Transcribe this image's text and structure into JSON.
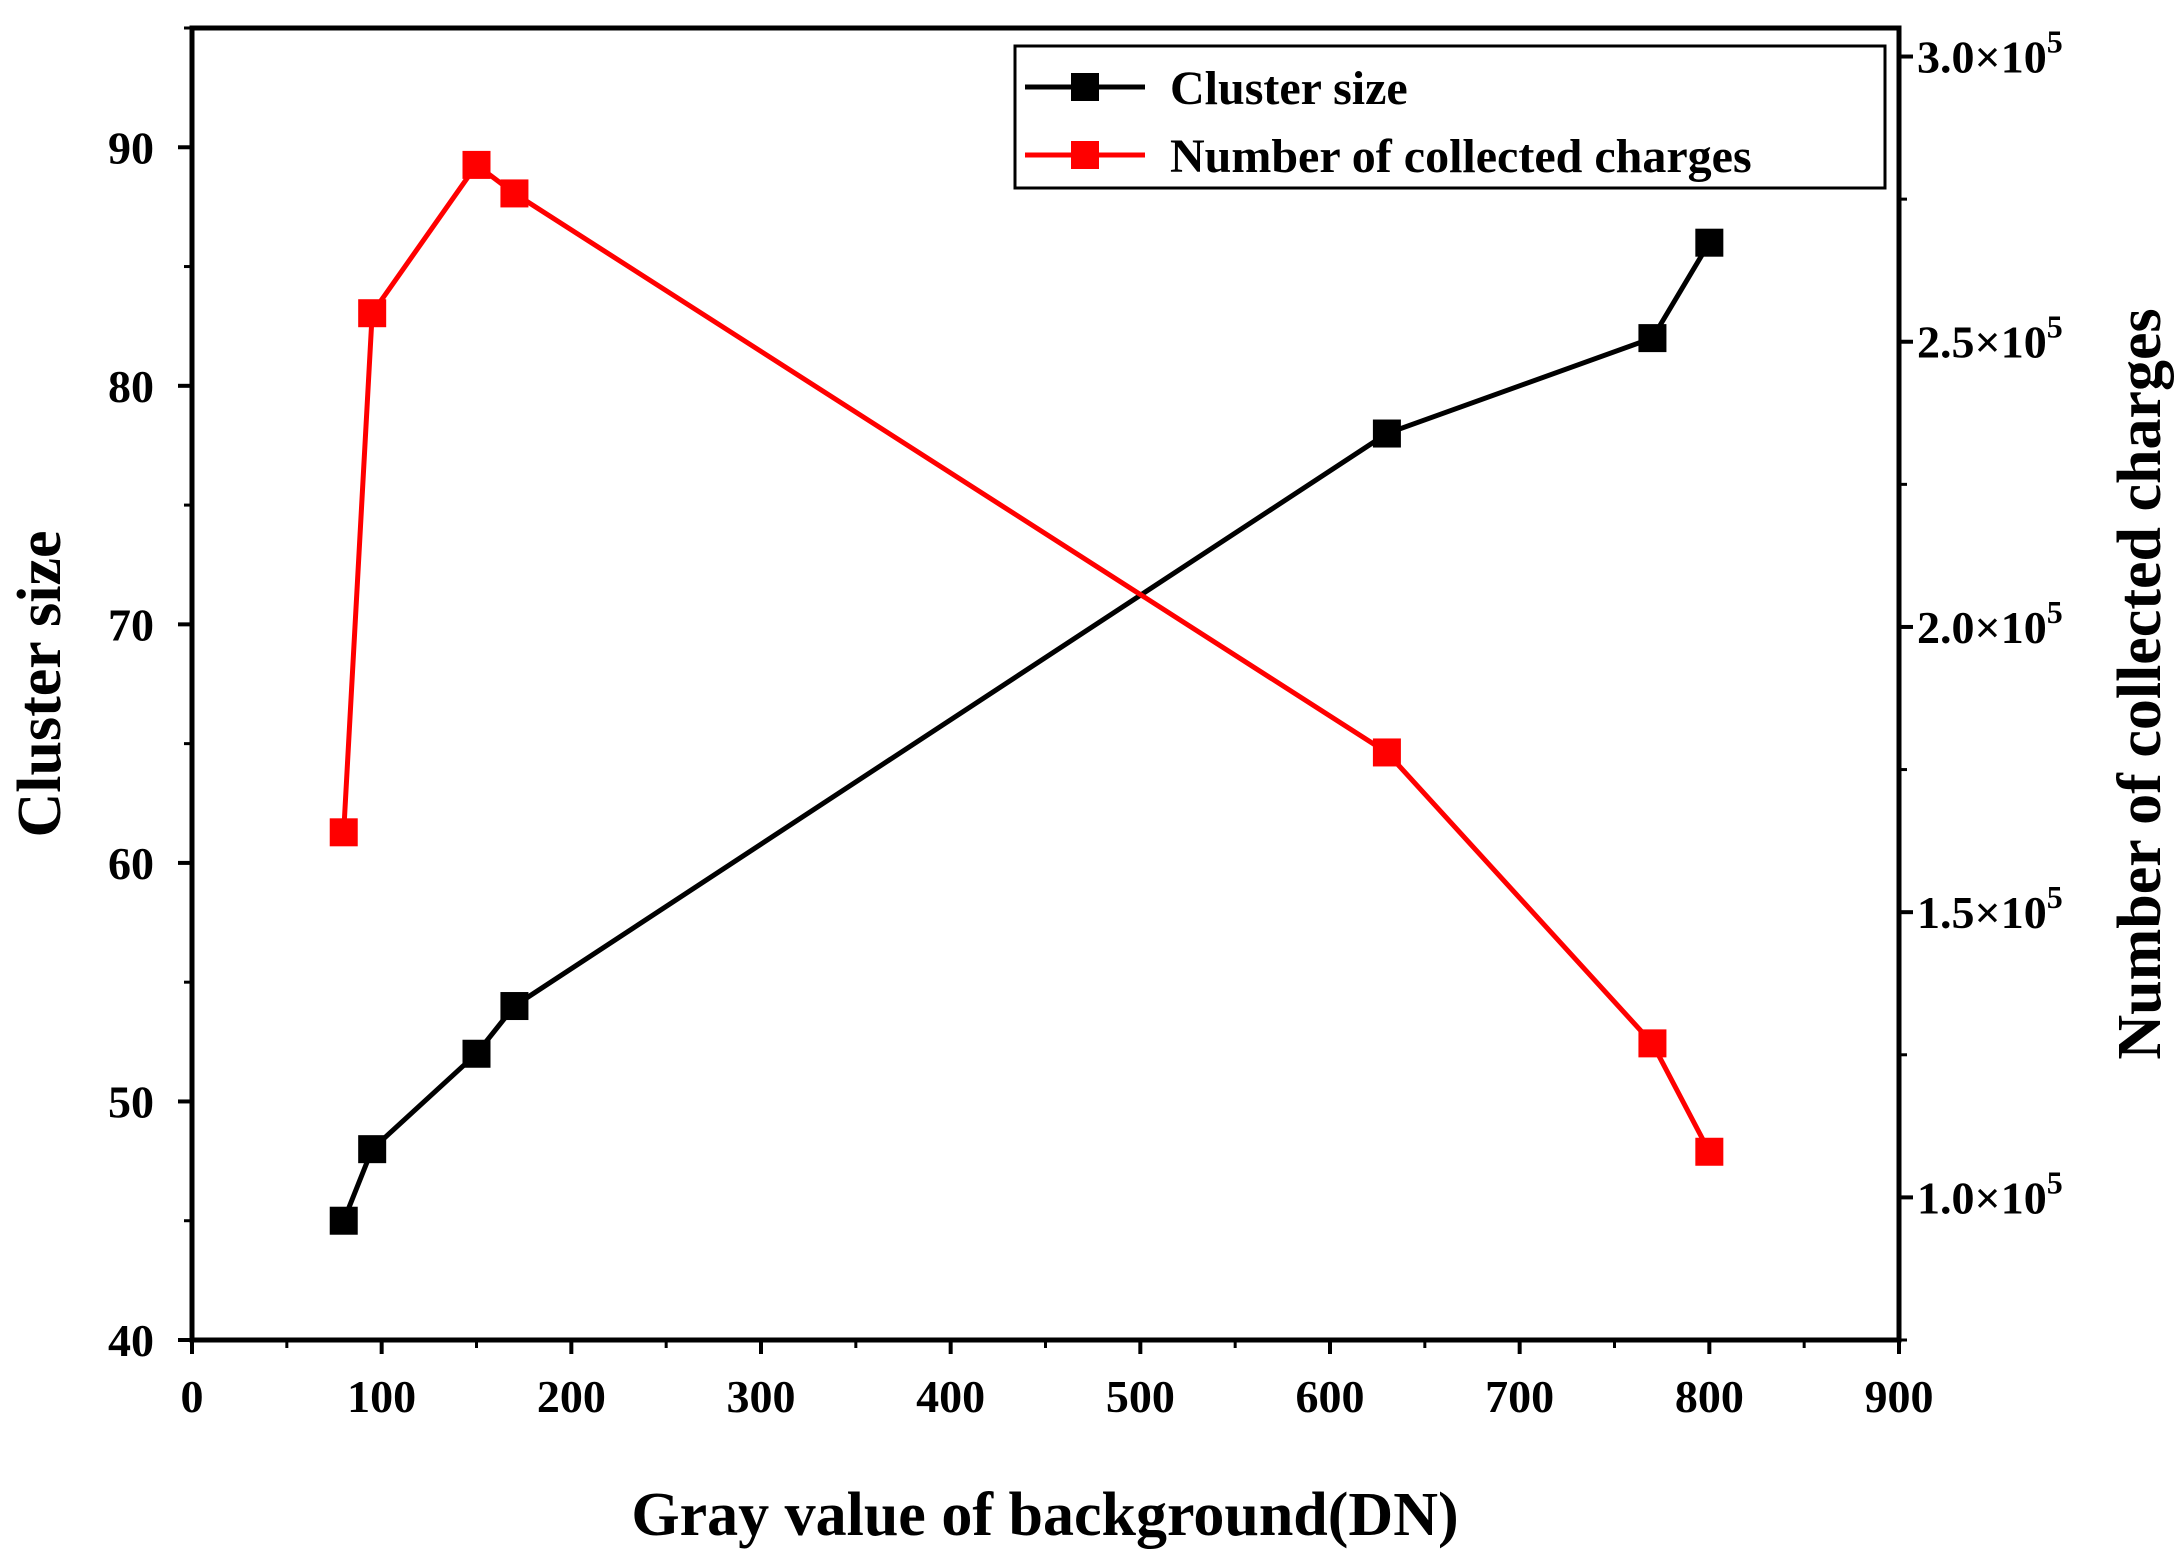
{
  "chart_data": {
    "type": "line",
    "xlabel": "Gray value of background(DN)",
    "ylabel": "Cluster size",
    "y2label": "Number of collected charges",
    "xlim": [
      0,
      900
    ],
    "ylim": [
      40,
      95
    ],
    "y2lim": [
      75000,
      305000
    ],
    "x_ticks": [
      "0",
      "100",
      "200",
      "300",
      "400",
      "500",
      "600",
      "700",
      "800",
      "900"
    ],
    "y_ticks": [
      "40",
      "50",
      "60",
      "70",
      "80",
      "90"
    ],
    "y2_ticks": [
      {
        "mantissa": "1.0",
        "exp": "5"
      },
      {
        "mantissa": "1.5",
        "exp": "5"
      },
      {
        "mantissa": "2.0",
        "exp": "5"
      },
      {
        "mantissa": "2.5",
        "exp": "5"
      },
      {
        "mantissa": "3.0",
        "exp": "5"
      }
    ],
    "x_tick_values": [
      0,
      100,
      200,
      300,
      400,
      500,
      600,
      700,
      800,
      900
    ],
    "y_tick_values": [
      40,
      50,
      60,
      70,
      80,
      90
    ],
    "y2_tick_values": [
      100000,
      150000,
      200000,
      250000,
      300000
    ],
    "series": [
      {
        "name": "Cluster size",
        "axis": "left",
        "color": "#000000",
        "x": [
          80,
          95,
          150,
          170,
          630,
          770,
          800
        ],
        "values": [
          45,
          48,
          52,
          54,
          78,
          82,
          86
        ]
      },
      {
        "name": "Number of collected charges",
        "axis": "right",
        "color": "#ff0000",
        "x": [
          80,
          95,
          150,
          170,
          630,
          770,
          800
        ],
        "values": [
          164000,
          255000,
          281000,
          276000,
          178000,
          127000,
          108000
        ]
      }
    ],
    "legend_position": "top-right"
  }
}
